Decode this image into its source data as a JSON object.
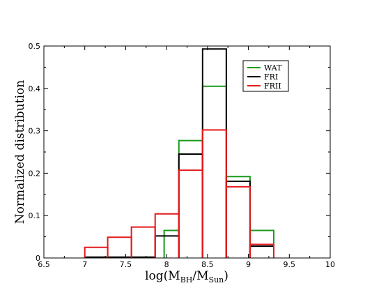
{
  "chart_data": {
    "type": "histogram",
    "xlabel": {
      "main": "log(M",
      "sub1": "BH",
      "sep": "/M",
      "sub2": "Sun",
      "close": ")"
    },
    "ylabel": "Normalized distribution",
    "xlim": [
      6.5,
      10
    ],
    "ylim": [
      0,
      0.5
    ],
    "x_ticks": [
      "6.5",
      "7",
      "7.5",
      "8",
      "8.5",
      "9",
      "9.5",
      "10"
    ],
    "y_ticks": [
      "0",
      "0.1",
      "0.2",
      "0.3",
      "0.4",
      "0.5"
    ],
    "legend_position": "top-right",
    "series": [
      {
        "name": "WAT",
        "color": "#1a9a1a",
        "bins": [
          {
            "x0": 7.97,
            "x1": 8.15,
            "y": 0.065
          },
          {
            "x0": 8.15,
            "x1": 8.44,
            "y": 0.277
          },
          {
            "x0": 8.44,
            "x1": 8.73,
            "y": 0.405
          },
          {
            "x0": 8.73,
            "x1": 9.02,
            "y": 0.192
          },
          {
            "x0": 9.02,
            "x1": 9.31,
            "y": 0.065
          }
        ]
      },
      {
        "name": "FRI",
        "color": "#000000",
        "bins": [
          {
            "x0": 7.0,
            "x1": 7.28,
            "y": 0.002
          },
          {
            "x0": 7.28,
            "x1": 7.57,
            "y": 0.002
          },
          {
            "x0": 7.57,
            "x1": 7.86,
            "y": 0.002
          },
          {
            "x0": 7.86,
            "x1": 8.15,
            "y": 0.052
          },
          {
            "x0": 8.15,
            "x1": 8.44,
            "y": 0.245
          },
          {
            "x0": 8.44,
            "x1": 8.73,
            "y": 0.493
          },
          {
            "x0": 8.73,
            "x1": 9.02,
            "y": 0.181
          },
          {
            "x0": 9.02,
            "x1": 9.31,
            "y": 0.028
          }
        ]
      },
      {
        "name": "FRII",
        "color": "#e41a1c",
        "bins": [
          {
            "x0": 7.0,
            "x1": 7.28,
            "y": 0.025
          },
          {
            "x0": 7.28,
            "x1": 7.57,
            "y": 0.049
          },
          {
            "x0": 7.57,
            "x1": 7.86,
            "y": 0.073
          },
          {
            "x0": 7.86,
            "x1": 8.15,
            "y": 0.104
          },
          {
            "x0": 8.15,
            "x1": 8.44,
            "y": 0.207
          },
          {
            "x0": 8.44,
            "x1": 8.73,
            "y": 0.302
          },
          {
            "x0": 8.73,
            "x1": 9.02,
            "y": 0.168
          },
          {
            "x0": 9.02,
            "x1": 9.31,
            "y": 0.032
          }
        ]
      }
    ]
  }
}
